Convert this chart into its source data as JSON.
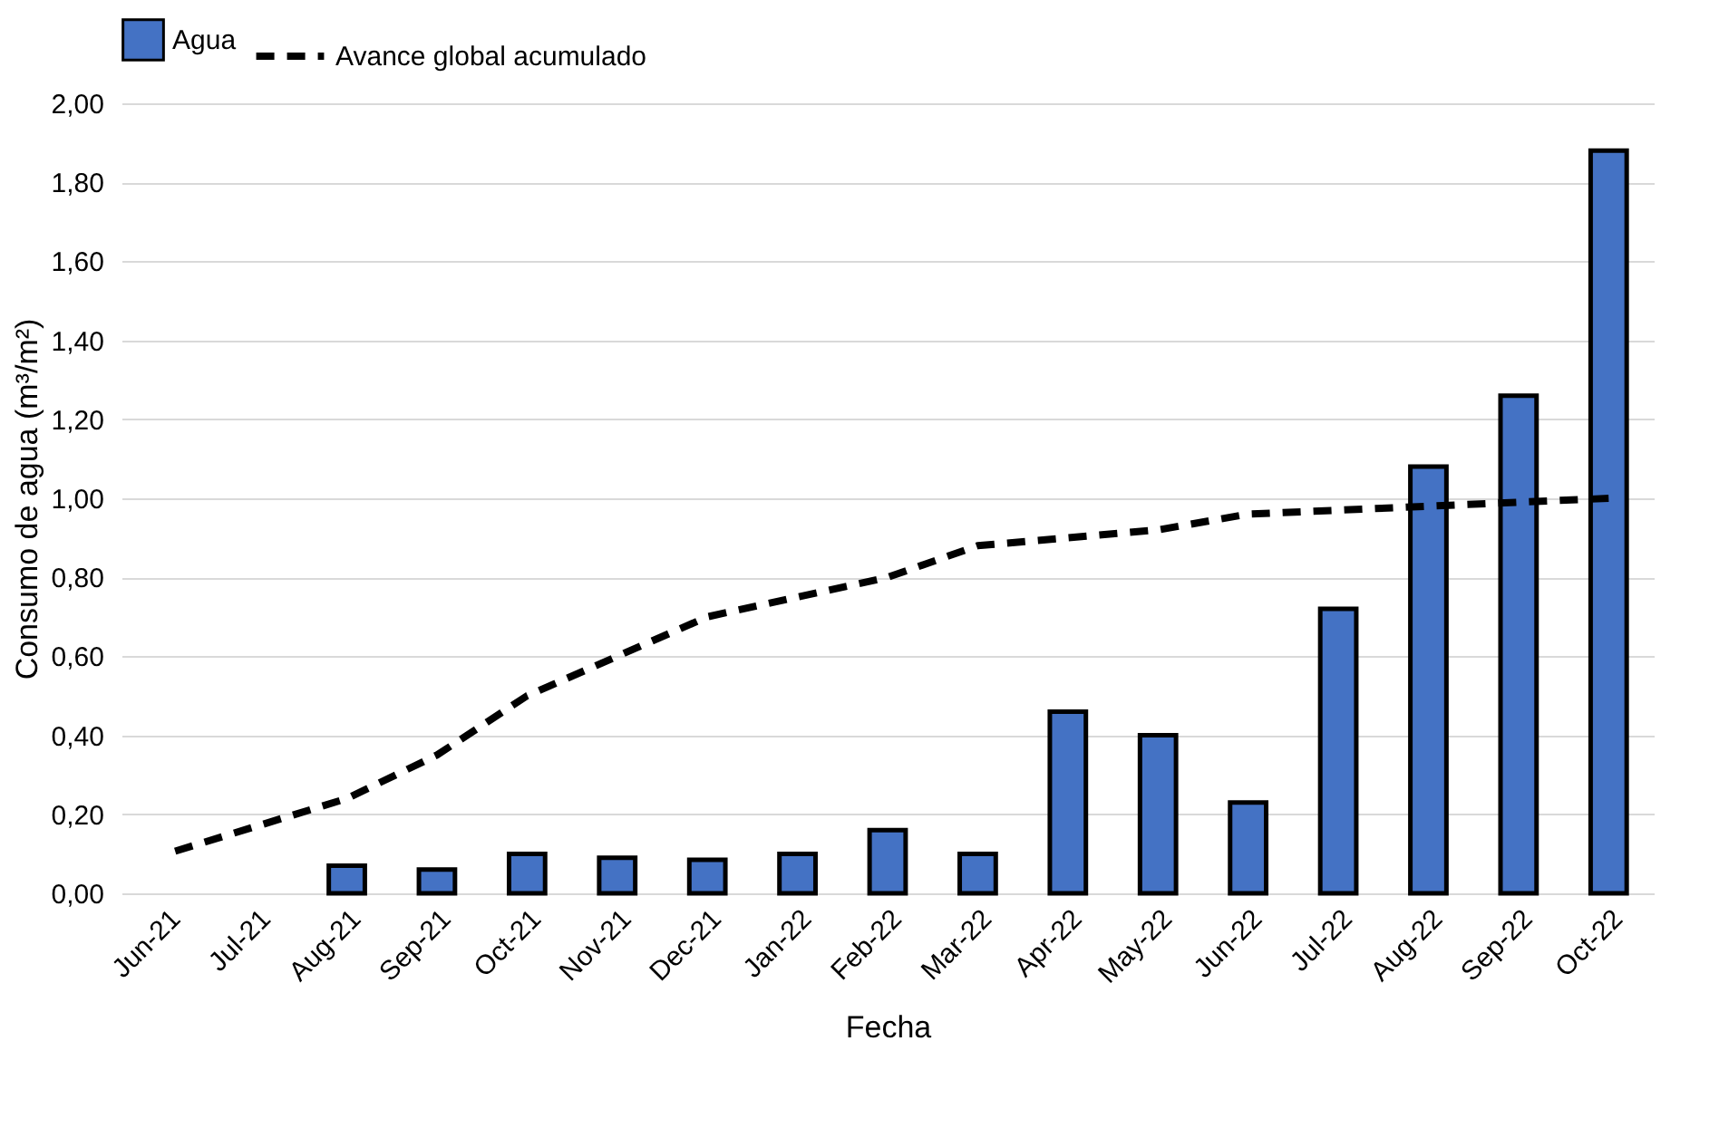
{
  "chart_data": {
    "type": "bar",
    "xlabel": "Fecha",
    "ylabel": "Consumo de agua (m³/m²)",
    "categories": [
      "Jun-21",
      "Jul-21",
      "Aug-21",
      "Sep-21",
      "Oct-21",
      "Nov-21",
      "Dec-21",
      "Jan-22",
      "Feb-22",
      "Mar-22",
      "Apr-22",
      "May-22",
      "Jun-22",
      "Jul-22",
      "Aug-22",
      "Sep-22",
      "Oct-22"
    ],
    "series": [
      {
        "name": "Agua",
        "color": "#4472c4",
        "values": [
          null,
          null,
          0.07,
          0.06,
          0.1,
          0.09,
          0.085,
          0.1,
          0.16,
          0.1,
          0.46,
          0.4,
          0.23,
          0.72,
          1.08,
          1.26,
          1.88
        ]
      },
      {
        "name": "Avance global acumulado",
        "type": "line",
        "color": "#000000",
        "line_style": "dashed",
        "values": [
          0.1,
          0.17,
          0.24,
          0.35,
          0.5,
          0.6,
          0.7,
          0.75,
          0.8,
          0.88,
          0.9,
          0.92,
          0.96,
          0.97,
          0.98,
          0.99,
          1.0
        ]
      }
    ],
    "ylim": [
      0,
      2
    ],
    "yticks": [
      {
        "value": 0,
        "label": "0,00"
      },
      {
        "value": 0.2,
        "label": "0,20"
      },
      {
        "value": 0.4,
        "label": "0,40"
      },
      {
        "value": 0.6,
        "label": "0,60"
      },
      {
        "value": 0.8,
        "label": "0,80"
      },
      {
        "value": 1,
        "label": "1,00"
      },
      {
        "value": 1.2,
        "label": "1,20"
      },
      {
        "value": 1.4,
        "label": "1,40"
      },
      {
        "value": 1.6,
        "label": "1,60"
      },
      {
        "value": 1.8,
        "label": "1,80"
      },
      {
        "value": 2,
        "label": "2,00"
      }
    ],
    "grid": "y",
    "legend": "top",
    "marker": "none"
  }
}
